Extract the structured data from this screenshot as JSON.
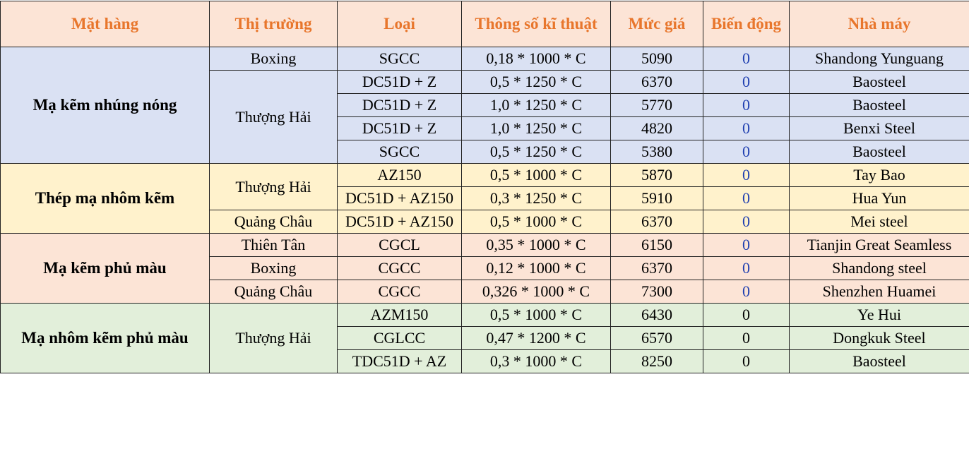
{
  "table": {
    "headers": [
      "Mặt hàng",
      "Thị trường",
      "Loại",
      "Thông số kĩ thuật",
      "Mức giá",
      "Biến động",
      "Nhà máy"
    ],
    "groups": [
      {
        "name": "Mạ kẽm nhúng nóng",
        "rows": [
          {
            "market": "Boxing",
            "type": "SGCC",
            "spec": "0,18 * 1000 * C",
            "price": "5090",
            "change": "0",
            "mill": "Shandong Yunguang"
          },
          {
            "market": "Thượng Hải",
            "type": "DC51D + Z",
            "spec": "0,5 * 1250 * C",
            "price": "6370",
            "change": "0",
            "mill": "Baosteel"
          },
          {
            "market": "",
            "type": "DC51D + Z",
            "spec": "1,0 * 1250 * C",
            "price": "5770",
            "change": "0",
            "mill": "Baosteel"
          },
          {
            "market": "",
            "type": "DC51D + Z",
            "spec": "1,0 * 1250 * C",
            "price": "4820",
            "change": "0",
            "mill": "Benxi Steel"
          },
          {
            "market": "",
            "type": "SGCC",
            "spec": "0,5 * 1250 * C",
            "price": "5380",
            "change": "0",
            "mill": "Baosteel"
          }
        ]
      },
      {
        "name": "Thép mạ nhôm kẽm",
        "rows": [
          {
            "market": "Thượng Hải",
            "type": "AZ150",
            "spec": "0,5 * 1000 * C",
            "price": "5870",
            "change": "0",
            "mill": "Tay Bao"
          },
          {
            "market": "",
            "type": "DC51D + AZ150",
            "spec": "0,3 * 1250 * C",
            "price": "5910",
            "change": "0",
            "mill": "Hua Yun"
          },
          {
            "market": "Quảng Châu",
            "type": "DC51D + AZ150",
            "spec": "0,5 * 1000 * C",
            "price": "6370",
            "change": "0",
            "mill": "Mei steel"
          }
        ]
      },
      {
        "name": "Mạ kẽm phủ màu",
        "rows": [
          {
            "market": "Thiên Tân",
            "type": "CGCL",
            "spec": "0,35 * 1000 * C",
            "price": "6150",
            "change": "0",
            "mill": "Tianjin Great Seamless"
          },
          {
            "market": "Boxing",
            "type": "CGCC",
            "spec": "0,12 * 1000 * C",
            "price": "6370",
            "change": "0",
            "mill": "Shandong steel"
          },
          {
            "market": "Quảng Châu",
            "type": "CGCC",
            "spec": "0,326 * 1000 * C",
            "price": "7300",
            "change": "0",
            "mill": "Shenzhen Huamei"
          }
        ]
      },
      {
        "name": "Mạ nhôm kẽm phủ màu",
        "rows": [
          {
            "market": "Thượng Hải",
            "type": "AZM150",
            "spec": "0,5 * 1000 * C",
            "price": "6430",
            "change": "0",
            "mill": "Ye Hui"
          },
          {
            "market": "",
            "type": "CGLCC",
            "spec": "0,47 * 1200 * C",
            "price": "6570",
            "change": "0",
            "mill": "Dongkuk Steel"
          },
          {
            "market": "",
            "type": "TDC51D + AZ",
            "spec": "0,3 * 1000 * C",
            "price": "8250",
            "change": "0",
            "mill": "Baosteel"
          }
        ]
      }
    ]
  },
  "colors": {
    "header_text": "#e8762c",
    "header_bg": "#fce4d6",
    "group_hot_dip_bg": "#dae1f3",
    "group_al_zn_bg": "#fff2cc",
    "group_color_zn_bg": "#fce4d6",
    "group_color_al_zn_bg": "#e2efda",
    "change_text": "#1f3fb0"
  }
}
